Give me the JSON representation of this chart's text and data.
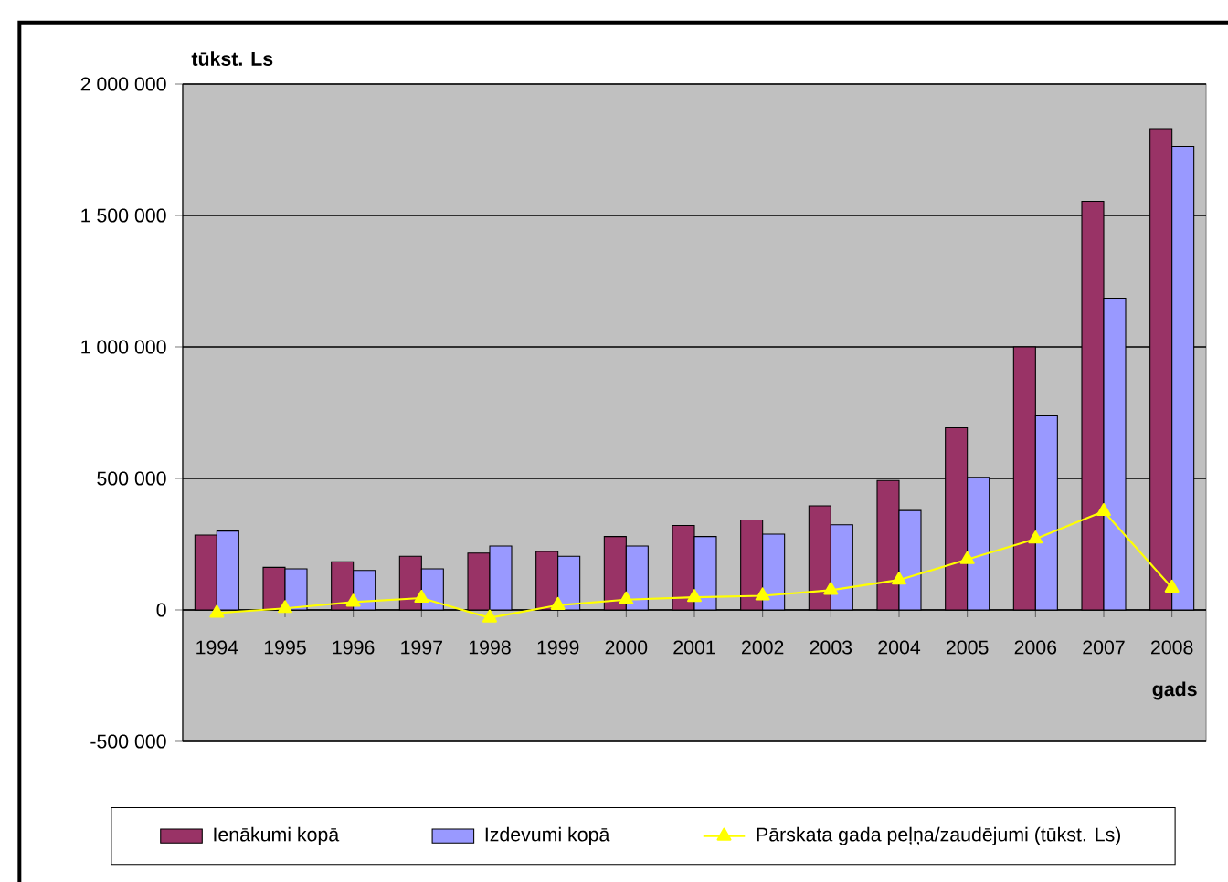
{
  "chart_data": {
    "type": "bar",
    "ylabel": "tūkst. Ls",
    "xlabel": "gads",
    "categories": [
      "1994",
      "1995",
      "1996",
      "1997",
      "1998",
      "1999",
      "2000",
      "2001",
      "2002",
      "2003",
      "2004",
      "2005",
      "2006",
      "2007",
      "2008"
    ],
    "series": [
      {
        "name": "Ienākumi kopā",
        "color": "#993366",
        "values": [
          285000,
          162000,
          183000,
          204000,
          216000,
          222000,
          279000,
          321000,
          342000,
          396000,
          492000,
          693000,
          1000000,
          1554000,
          1830000
        ]
      },
      {
        "name": "Izdevumi kopā",
        "color": "#9999ff",
        "values": [
          300000,
          156000,
          150000,
          156000,
          243000,
          204000,
          243000,
          279000,
          288000,
          324000,
          378000,
          504000,
          738000,
          1186000,
          1762000
        ]
      },
      {
        "name": "Pārskata gada peļņa/zaudējumi (tūkst. Ls)",
        "type": "line",
        "color": "#ffff00",
        "marker": "triangle",
        "values": [
          -12000,
          6000,
          30000,
          45000,
          -30000,
          18000,
          39000,
          48000,
          54000,
          75000,
          114000,
          192000,
          270000,
          375000,
          84000
        ]
      }
    ],
    "ylim": [
      -500000,
      2000000
    ],
    "yticks": [
      {
        "value": -500000,
        "label": "-500 000"
      },
      0,
      {
        "value": 500000,
        "label": "500 000"
      },
      {
        "value": 1000000,
        "label": "1 000 000"
      },
      {
        "value": 1500000,
        "label": "1 500 000"
      },
      {
        "value": 2000000,
        "label": "2 000 000"
      }
    ],
    "grid": "y",
    "legend": "bottom"
  }
}
